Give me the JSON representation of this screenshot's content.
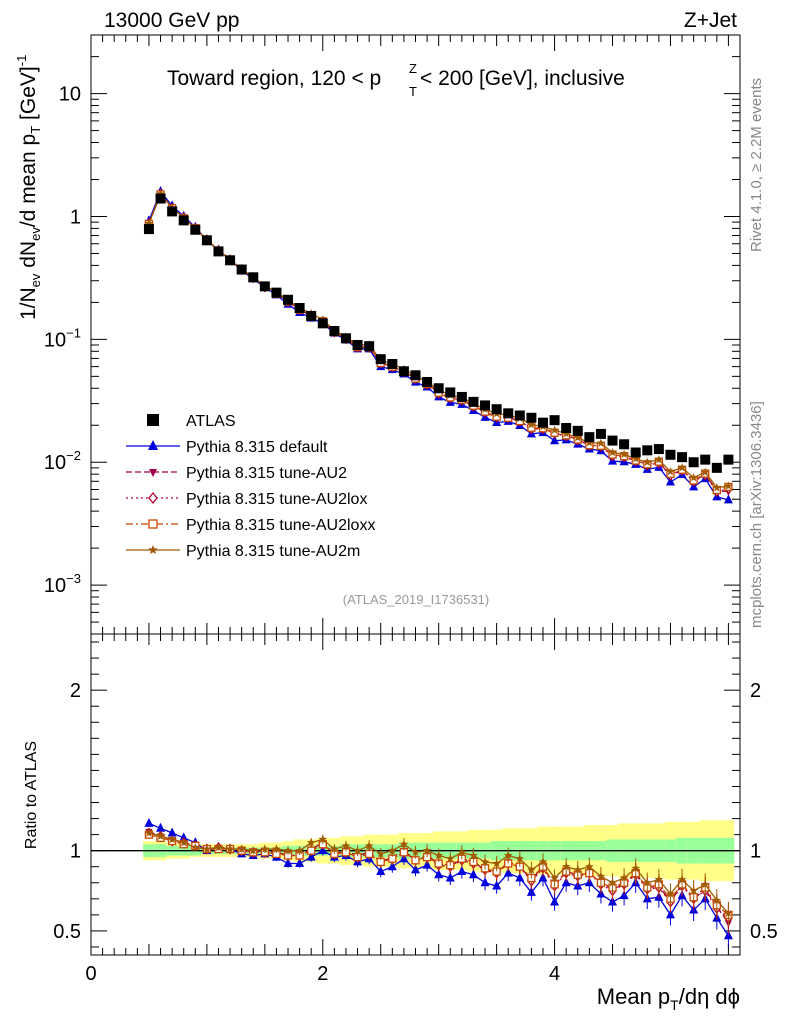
{
  "header": {
    "left": "13000 GeV pp",
    "right": "Z+Jet",
    "title_prefix": "Toward region, 120 < p",
    "title_sup": "Z",
    "title_sub": "T",
    "title_suffix": " < 200 [GeV], inclusive",
    "side_top": "Rivet 4.1.0, ≥ 2.2M events",
    "side_bottom": "mcplots.cern.ch [arXiv:1306.3436]",
    "watermark": "(ATLAS_2019_I1736531)"
  },
  "colors": {
    "atlas": "#000000",
    "default": "#0000dd",
    "au2": "#a0004a",
    "au2lox": "#b8002a",
    "au2loxx": "#c84800",
    "au2m": "#a05a00",
    "band_inner": "#99ff99",
    "band_outer": "#ffff88"
  },
  "chart_data": [
    {
      "type": "scatter",
      "panel": "main",
      "ylabel": "1/N_ev dN_ev/d mean p_T [GeV]^-1",
      "yscale": "log",
      "xlim": [
        0,
        5.6
      ],
      "ylim": [
        0.0004,
        30
      ],
      "y_ticks": [
        {
          "value": 0.001,
          "base": "10",
          "exp": "−3"
        },
        {
          "value": 0.01,
          "base": "10",
          "exp": "−2"
        },
        {
          "value": 0.1,
          "base": "10",
          "exp": "−1"
        },
        {
          "value": 1,
          "base": "1",
          "exp": ""
        },
        {
          "value": 10,
          "base": "10",
          "exp": ""
        }
      ],
      "x": [
        0.5,
        0.6,
        0.7,
        0.8,
        0.9,
        1.0,
        1.1,
        1.2,
        1.3,
        1.4,
        1.5,
        1.6,
        1.7,
        1.8,
        1.9,
        2.0,
        2.1,
        2.2,
        2.3,
        2.4,
        2.5,
        2.6,
        2.7,
        2.8,
        2.9,
        3.0,
        3.1,
        3.2,
        3.3,
        3.4,
        3.5,
        3.6,
        3.7,
        3.8,
        3.9,
        4.0,
        4.1,
        4.2,
        4.3,
        4.4,
        4.5,
        4.6,
        4.7,
        4.8,
        4.9,
        5.0,
        5.1,
        5.2,
        5.3,
        5.4,
        5.5
      ],
      "atlas": [
        0.79,
        1.4,
        1.1,
        0.93,
        0.78,
        0.64,
        0.52,
        0.44,
        0.37,
        0.32,
        0.27,
        0.24,
        0.21,
        0.18,
        0.155,
        0.135,
        0.117,
        0.102,
        0.09,
        0.088,
        0.069,
        0.063,
        0.055,
        0.051,
        0.045,
        0.04,
        0.037,
        0.034,
        0.031,
        0.029,
        0.027,
        0.025,
        0.024,
        0.023,
        0.021,
        0.022,
        0.019,
        0.018,
        0.016,
        0.017,
        0.015,
        0.014,
        0.012,
        0.0125,
        0.0128,
        0.0115,
        0.011,
        0.01,
        0.0105,
        0.009,
        0.0105
      ],
      "series": [
        {
          "name": "Pythia 8.315 default",
          "key": "default",
          "marker": "triangle",
          "dash": "",
          "ratio": [
            1.17,
            1.14,
            1.11,
            1.08,
            1.05,
            1.0,
            1.02,
            1.01,
            0.98,
            0.97,
            0.98,
            0.96,
            0.92,
            0.92,
            0.96,
            1.0,
            0.96,
            0.97,
            0.93,
            0.95,
            0.87,
            0.9,
            0.95,
            0.88,
            0.91,
            0.85,
            0.83,
            0.87,
            0.85,
            0.8,
            0.78,
            0.86,
            0.83,
            0.74,
            0.83,
            0.68,
            0.8,
            0.78,
            0.8,
            0.73,
            0.68,
            0.72,
            0.8,
            0.7,
            0.71,
            0.6,
            0.72,
            0.63,
            0.7,
            0.58,
            0.47
          ]
        },
        {
          "name": "Pythia 8.315 tune-AU2",
          "key": "au2",
          "marker": "triangle-down",
          "dash": "6,3",
          "ratio": [
            1.12,
            1.09,
            1.07,
            1.05,
            1.03,
            1.01,
            1.02,
            1.02,
            1.0,
            0.99,
            1.0,
            0.99,
            0.97,
            0.97,
            1.01,
            1.05,
            0.98,
            1.0,
            0.97,
            0.99,
            0.93,
            0.96,
            1.0,
            0.94,
            0.97,
            0.92,
            0.9,
            0.95,
            0.93,
            0.88,
            0.86,
            0.93,
            0.9,
            0.82,
            0.9,
            0.78,
            0.87,
            0.85,
            0.86,
            0.8,
            0.76,
            0.79,
            0.86,
            0.77,
            0.78,
            0.68,
            0.79,
            0.7,
            0.76,
            0.65,
            0.55
          ]
        },
        {
          "name": "Pythia 8.315 tune-AU2lox",
          "key": "au2lox",
          "marker": "diamond-open",
          "dash": "2,3",
          "ratio": [
            1.11,
            1.09,
            1.06,
            1.05,
            1.03,
            1.01,
            1.02,
            1.01,
            1.0,
            0.99,
            0.99,
            0.99,
            0.97,
            0.97,
            1.0,
            1.04,
            0.98,
            0.99,
            0.96,
            0.98,
            0.93,
            0.95,
            0.99,
            0.94,
            0.96,
            0.91,
            0.9,
            0.94,
            0.92,
            0.88,
            0.86,
            0.92,
            0.9,
            0.81,
            0.89,
            0.78,
            0.86,
            0.84,
            0.86,
            0.79,
            0.75,
            0.79,
            0.85,
            0.76,
            0.77,
            0.68,
            0.78,
            0.7,
            0.75,
            0.64,
            0.58
          ]
        },
        {
          "name": "Pythia 8.315 tune-AU2loxx",
          "key": "au2loxx",
          "marker": "square-open",
          "dash": "7,3,2,3",
          "ratio": [
            1.1,
            1.08,
            1.06,
            1.04,
            1.03,
            1.01,
            1.01,
            1.01,
            1.0,
            0.99,
            0.99,
            0.98,
            0.97,
            0.97,
            1.0,
            1.04,
            0.98,
            0.99,
            0.96,
            0.98,
            0.93,
            0.95,
            0.99,
            0.94,
            0.96,
            0.92,
            0.91,
            0.95,
            0.93,
            0.89,
            0.87,
            0.92,
            0.9,
            0.83,
            0.9,
            0.79,
            0.87,
            0.85,
            0.86,
            0.8,
            0.77,
            0.8,
            0.86,
            0.77,
            0.79,
            0.7,
            0.79,
            0.71,
            0.77,
            0.66,
            0.6
          ]
        },
        {
          "name": "Pythia 8.315 tune-AU2m",
          "key": "au2m",
          "marker": "star",
          "dash": "",
          "ratio": [
            1.11,
            1.09,
            1.07,
            1.05,
            1.02,
            1.01,
            1.02,
            1.01,
            1.01,
            1.0,
            1.01,
            1.01,
            1.0,
            1.0,
            1.05,
            1.07,
            1.01,
            1.03,
            1.0,
            1.03,
            0.98,
            1.0,
            1.04,
            0.99,
            1.0,
            0.97,
            0.95,
            0.99,
            0.97,
            0.93,
            0.92,
            0.97,
            0.95,
            0.88,
            0.93,
            0.83,
            0.9,
            0.88,
            0.9,
            0.84,
            0.8,
            0.83,
            0.89,
            0.8,
            0.82,
            0.73,
            0.82,
            0.75,
            0.79,
            0.69,
            0.61
          ]
        }
      ],
      "legend": [
        "ATLAS",
        "Pythia 8.315 default",
        "Pythia 8.315 tune-AU2",
        "Pythia 8.315 tune-AU2lox",
        "Pythia 8.315 tune-AU2loxx",
        "Pythia 8.315 tune-AU2m"
      ],
      "legend_position": "lower-left"
    },
    {
      "type": "scatter",
      "panel": "ratio",
      "ylabel": "Ratio to ATLAS",
      "xlabel": "Mean p_T/dη dϕ",
      "xlim": [
        0,
        5.6
      ],
      "ylim": [
        0.35,
        2.35
      ],
      "x_ticks": [
        0,
        2,
        4
      ],
      "y_ticks": [
        0.5,
        1,
        2
      ],
      "band_inner_halfwidth": [
        0.04,
        0.04,
        0.03,
        0.03,
        0.03,
        0.02,
        0.02,
        0.02,
        0.02,
        0.02,
        0.02,
        0.02,
        0.03,
        0.03,
        0.03,
        0.03,
        0.03,
        0.04,
        0.04,
        0.04,
        0.04,
        0.04,
        0.05,
        0.05,
        0.05,
        0.05,
        0.05,
        0.05,
        0.05,
        0.05,
        0.06,
        0.06,
        0.06,
        0.06,
        0.06,
        0.06,
        0.06,
        0.06,
        0.06,
        0.06,
        0.07,
        0.07,
        0.07,
        0.07,
        0.07,
        0.07,
        0.08,
        0.08,
        0.08,
        0.08,
        0.08
      ],
      "band_outer_halfwidth": [
        0.06,
        0.06,
        0.05,
        0.05,
        0.04,
        0.04,
        0.04,
        0.04,
        0.04,
        0.04,
        0.05,
        0.05,
        0.06,
        0.07,
        0.07,
        0.08,
        0.08,
        0.09,
        0.09,
        0.1,
        0.1,
        0.1,
        0.11,
        0.11,
        0.11,
        0.12,
        0.12,
        0.12,
        0.13,
        0.13,
        0.13,
        0.14,
        0.14,
        0.14,
        0.15,
        0.15,
        0.15,
        0.15,
        0.16,
        0.16,
        0.16,
        0.17,
        0.17,
        0.17,
        0.17,
        0.18,
        0.18,
        0.18,
        0.19,
        0.19,
        0.19
      ]
    }
  ]
}
